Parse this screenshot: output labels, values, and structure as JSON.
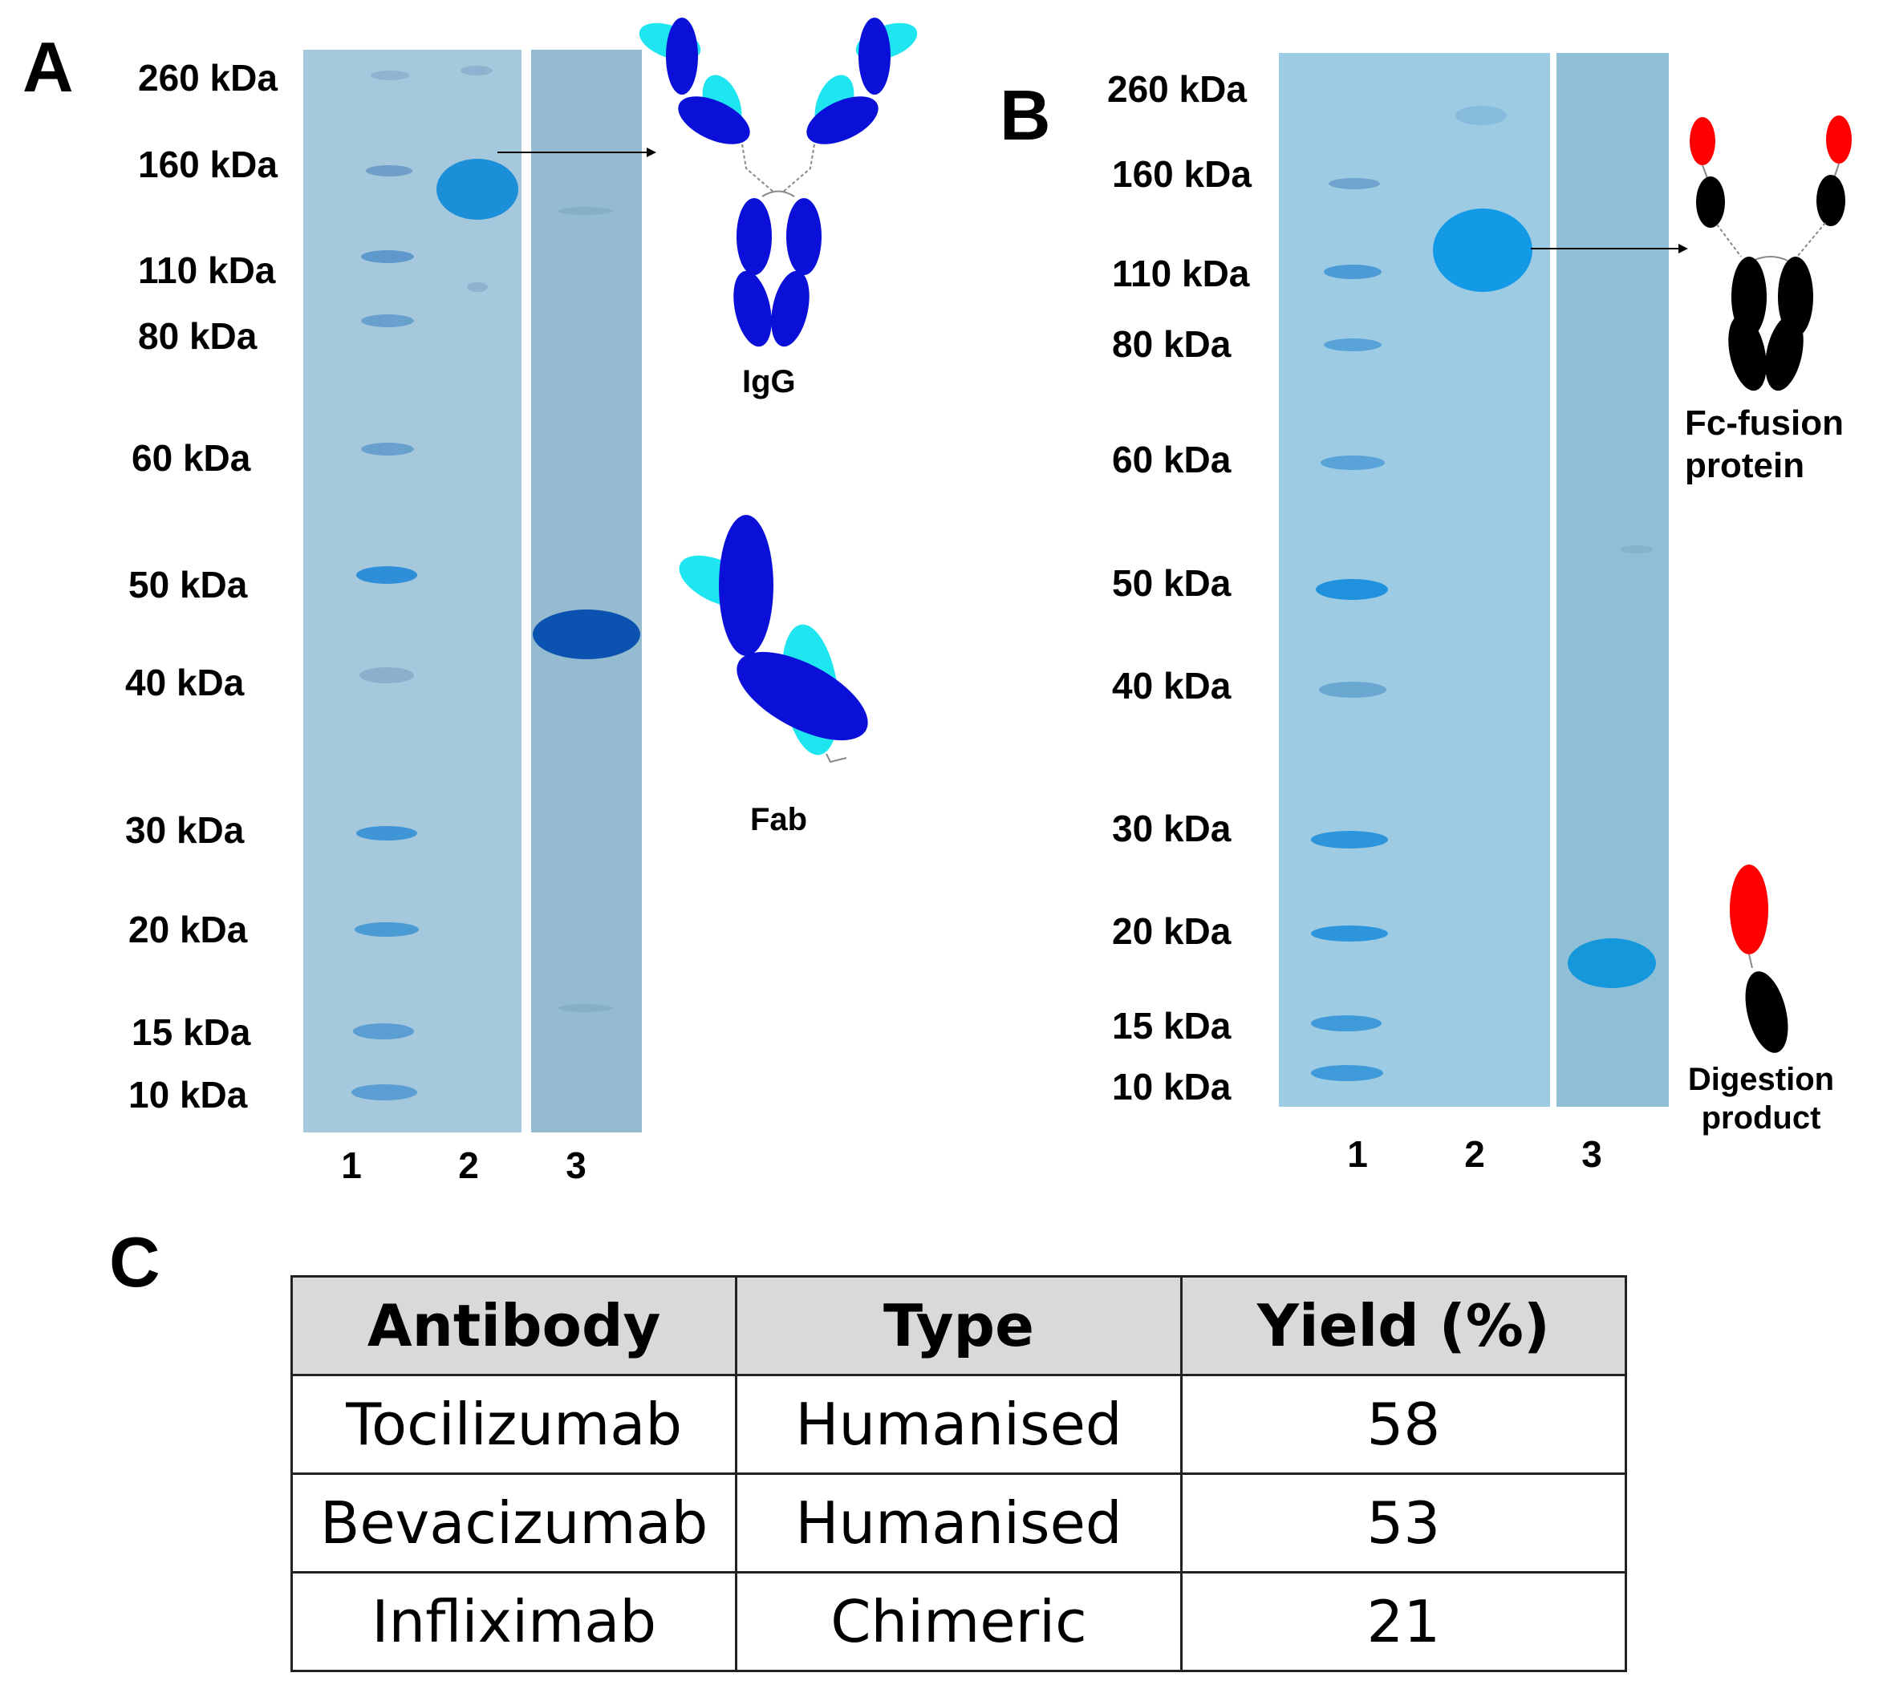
{
  "panels": {
    "a": {
      "letter": "A",
      "markers": [
        "260 kDa",
        "160 kDa",
        "110 kDa",
        "80 kDa",
        "60 kDa",
        "50 kDa",
        "40 kDa",
        "30 kDa",
        "20 kDa",
        "15 kDa",
        "10 kDa"
      ],
      "lanes": [
        "1",
        "2",
        "3"
      ],
      "schematics": [
        "IgG",
        "Fab"
      ]
    },
    "b": {
      "letter": "B",
      "markers": [
        "260 kDa",
        "160 kDa",
        "110 kDa",
        "80 kDa",
        "60 kDa",
        "50 kDa",
        "40 kDa",
        "30 kDa",
        "20 kDa",
        "15 kDa",
        "10 kDa"
      ],
      "lanes": [
        "1",
        "2",
        "3"
      ],
      "schematics": {
        "fusion_line1": "Fc-fusion",
        "fusion_line2": "protein",
        "digest_line1": "Digestion",
        "digest_line2": "product"
      }
    },
    "c": {
      "letter": "C",
      "headers": [
        "Antibody",
        "Type",
        "Yield (%)"
      ],
      "rows": [
        [
          "Tocilizumab",
          "Humanised",
          "58"
        ],
        [
          "Bevacizumab",
          "Humanised",
          "53"
        ],
        [
          "Infliximab",
          "Chimeric",
          "21"
        ]
      ]
    }
  },
  "colors": {
    "gel_light": "#a9ccdf",
    "gel_dark": "#95bccf",
    "band": "#1a8fd6",
    "band_dark": "#0a4fa8",
    "igg_heavy": "#0a10d8",
    "igg_light": "#1ee5f0",
    "fusion_body": "#000000",
    "fusion_tag": "#ff0000"
  }
}
